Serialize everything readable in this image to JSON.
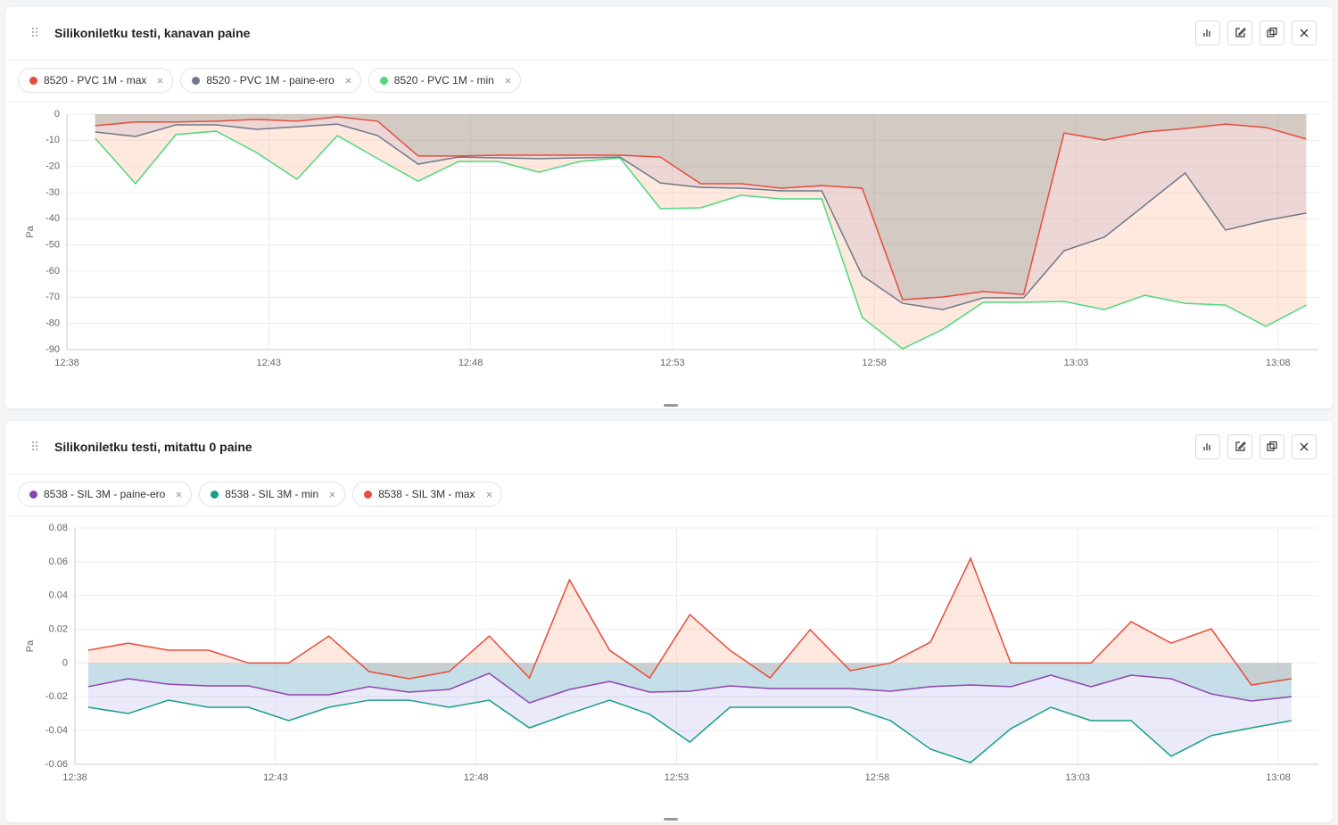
{
  "chart_data": [
    {
      "type": "line",
      "title": "Silikoniletku testi, kanavan paine",
      "y_label": "Pa",
      "x": [
        758.7,
        759.7,
        760.7,
        761.7,
        762.7,
        763.7,
        764.7,
        765.7,
        766.7,
        767.7,
        768.7,
        769.7,
        770.7,
        771.7,
        772.7,
        773.7,
        774.7,
        775.7,
        776.7,
        777.7,
        778.7,
        779.7,
        780.7,
        781.7,
        782.7,
        783.7,
        784.7,
        785.7,
        786.7,
        787.7,
        788.7
      ],
      "xlim": [
        758,
        789
      ],
      "xticks": [
        {
          "value": 758,
          "label": "12:38"
        },
        {
          "value": 763,
          "label": "12:43"
        },
        {
          "value": 768,
          "label": "12:48"
        },
        {
          "value": 773,
          "label": "12:53"
        },
        {
          "value": 778,
          "label": "12:58"
        },
        {
          "value": 783,
          "label": "13:03"
        },
        {
          "value": 788,
          "label": "13:08"
        }
      ],
      "ylim": [
        -90,
        0
      ],
      "yticks": [
        0,
        -10,
        -20,
        -30,
        -40,
        -50,
        -60,
        -70,
        -80,
        -90
      ],
      "grid": true,
      "series": [
        {
          "name": "8520 - PVC 1M - max",
          "color": "#e74c3c",
          "fill": "rgba(60,130,90,0.15)",
          "values": [
            -4.4,
            -3,
            -3,
            -2.7,
            -2,
            -2.7,
            -1,
            -2.7,
            -16,
            -16,
            -15.7,
            -15.7,
            -15.7,
            -15.7,
            -16.4,
            -26.6,
            -26.6,
            -28.3,
            -27.3,
            -28.3,
            -70.9,
            -69.9,
            -67.8,
            -68.9,
            -7.2,
            -9.9,
            -6.8,
            -5.5,
            -3.8,
            -5.1,
            -9.5
          ]
        },
        {
          "name": "8520 - PVC 1M - paine-ero",
          "color": "#6c7a89",
          "fill": "rgba(110,100,160,0.12)",
          "values": [
            -6.8,
            -8.5,
            -4.1,
            -4.1,
            -5.8,
            -4.8,
            -3.8,
            -8.2,
            -19.1,
            -16.4,
            -16.7,
            -17,
            -16.7,
            -16.4,
            -26.3,
            -28,
            -28.3,
            -29.3,
            -29.3,
            -61.7,
            -72.3,
            -74.7,
            -70.2,
            -70.2,
            -52.2,
            -47,
            -34.8,
            -22.5,
            -44.3,
            -40.6,
            -37.8
          ]
        },
        {
          "name": "8520 - PVC 1M - min",
          "color": "#4cd97b",
          "fill": "rgba(255,190,160,0.35)",
          "values": [
            -9.2,
            -26.6,
            -7.8,
            -6.5,
            -14.7,
            -24.9,
            -8.2,
            -17,
            -25.6,
            -18.1,
            -18.1,
            -22.2,
            -18.1,
            -16.7,
            -36.1,
            -35.8,
            -31,
            -32.4,
            -32.4,
            -77.7,
            -89.7,
            -82.2,
            -71.9,
            -71.9,
            -71.6,
            -74.7,
            -69.2,
            -72.3,
            -73,
            -81.1,
            -73
          ]
        }
      ]
    },
    {
      "type": "line",
      "title": "Silikoniletku testi, mitattu 0 paine",
      "y_label": "Pa",
      "x": [
        758.33,
        759.33,
        760.33,
        761.33,
        762.33,
        763.33,
        764.33,
        765.33,
        766.33,
        767.33,
        768.33,
        769.33,
        770.33,
        771.33,
        772.33,
        773.33,
        774.33,
        775.33,
        776.33,
        777.33,
        778.33,
        779.33,
        780.33,
        781.33,
        782.33,
        783.33,
        784.33,
        785.33,
        786.33,
        787.33,
        788.33
      ],
      "xlim": [
        758,
        789
      ],
      "xticks": [
        {
          "value": 758,
          "label": "12:38"
        },
        {
          "value": 763,
          "label": "12:43"
        },
        {
          "value": 768,
          "label": "12:48"
        },
        {
          "value": 773,
          "label": "12:53"
        },
        {
          "value": 778,
          "label": "12:58"
        },
        {
          "value": 783,
          "label": "13:03"
        },
        {
          "value": 788,
          "label": "13:08"
        }
      ],
      "ylim": [
        -0.06,
        0.08
      ],
      "yticks": [
        {
          "value": 0.08,
          "label": "0.08"
        },
        {
          "value": 0.06,
          "label": "0.06"
        },
        {
          "value": 0.04,
          "label": "0.04"
        },
        {
          "value": 0.02,
          "label": "0.02"
        },
        0,
        {
          "value": -0.02,
          "label": "-0.02"
        },
        {
          "value": -0.04,
          "label": "-0.04"
        },
        {
          "value": -0.06,
          "label": "-0.06"
        }
      ],
      "grid": true,
      "series": [
        {
          "name": "8538 - SIL 3M - paine-ero",
          "color": "#8e44ad",
          "fill": "rgba(40,170,150,0.18)",
          "values": [
            -0.014,
            -0.0093,
            -0.0125,
            -0.0135,
            -0.0135,
            -0.0188,
            -0.0188,
            -0.014,
            -0.0172,
            -0.0156,
            -0.0061,
            -0.0236,
            -0.0156,
            -0.0109,
            -0.0172,
            -0.0167,
            -0.0135,
            -0.0151,
            -0.0151,
            -0.0151,
            -0.0167,
            -0.014,
            -0.013,
            -0.014,
            -0.0072,
            -0.014,
            -0.0072,
            -0.0093,
            -0.0183,
            -0.0225,
            -0.0199
          ]
        },
        {
          "name": "8538 - SIL 3M - min",
          "color": "#16a085",
          "fill": "rgba(160,160,230,0.22)",
          "values": [
            -0.0262,
            -0.0299,
            -0.022,
            -0.0262,
            -0.0262,
            -0.0341,
            -0.0262,
            -0.022,
            -0.022,
            -0.0262,
            -0.022,
            -0.0384,
            -0.0299,
            -0.022,
            -0.0304,
            -0.0468,
            -0.0262,
            -0.0262,
            -0.0262,
            -0.0262,
            -0.0341,
            -0.051,
            -0.059,
            -0.0389,
            -0.0262,
            -0.0341,
            -0.0341,
            -0.0552,
            -0.043,
            -0.0384,
            -0.0341
          ]
        },
        {
          "name": "8538 - SIL 3M - max",
          "color": "#e74c3c",
          "fill": "rgba(255,180,150,0.3)",
          "values": [
            0.0076,
            0.0118,
            0.0076,
            0.0076,
            0,
            0,
            0.016,
            -0.005,
            -0.0093,
            -0.005,
            0.016,
            -0.0088,
            0.0493,
            0.0076,
            -0.0088,
            0.0287,
            0.0076,
            -0.0088,
            0.0198,
            -0.0045,
            0,
            0.0124,
            0.062,
            0,
            0,
            0,
            0.0245,
            0.0118,
            0.0203,
            -0.013,
            -0.0093
          ]
        }
      ]
    }
  ]
}
